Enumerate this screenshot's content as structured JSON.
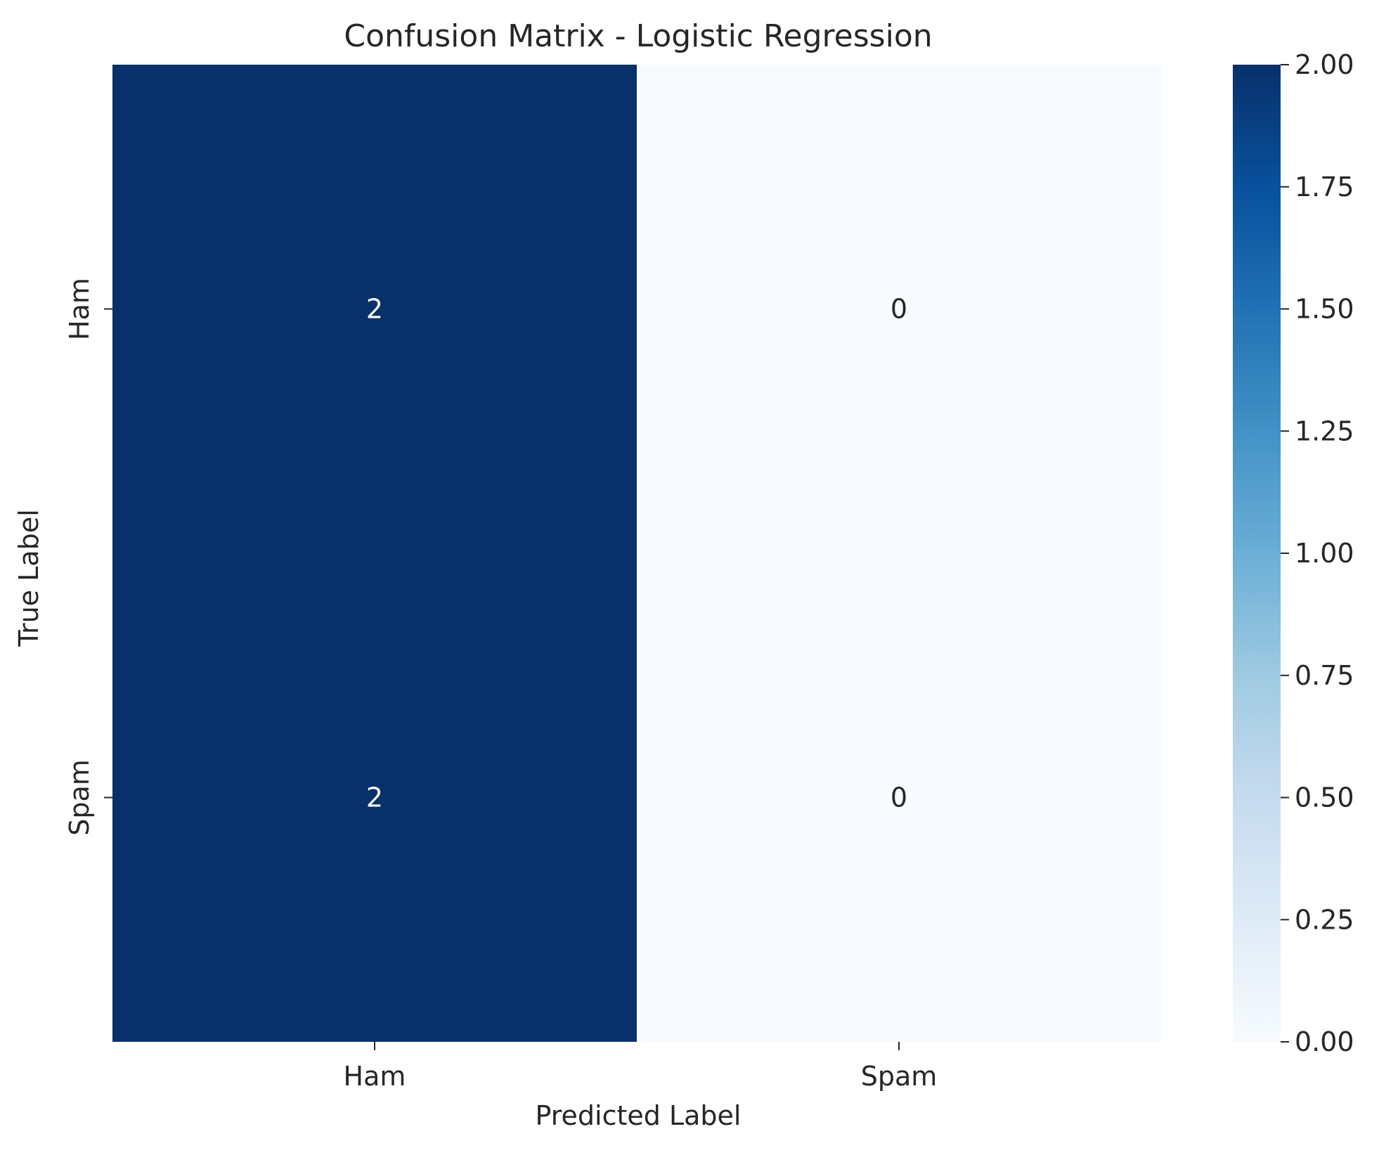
{
  "chart_data": {
    "type": "heatmap",
    "title": "Confusion Matrix - Logistic Regression",
    "xlabel": "Predicted Label",
    "ylabel": "True Label",
    "x_categories": [
      "Ham",
      "Spam"
    ],
    "y_categories": [
      "Ham",
      "Spam"
    ],
    "values": [
      [
        2,
        0
      ],
      [
        2,
        0
      ]
    ],
    "colormap": "Blues",
    "colorbar": {
      "range": [
        0,
        2
      ],
      "ticks": [
        "0.00",
        "0.25",
        "0.50",
        "0.75",
        "1.00",
        "1.25",
        "1.50",
        "1.75",
        "2.00"
      ],
      "colors": [
        "#f7fbff",
        "#deebf7",
        "#c6dbef",
        "#9ecae1",
        "#6baed6",
        "#4292c6",
        "#2171b5",
        "#08519c",
        "#08306b"
      ]
    },
    "grid": false,
    "annotation_colors": {
      "dark_text": "#262626",
      "light_text": "#ffffff"
    }
  }
}
